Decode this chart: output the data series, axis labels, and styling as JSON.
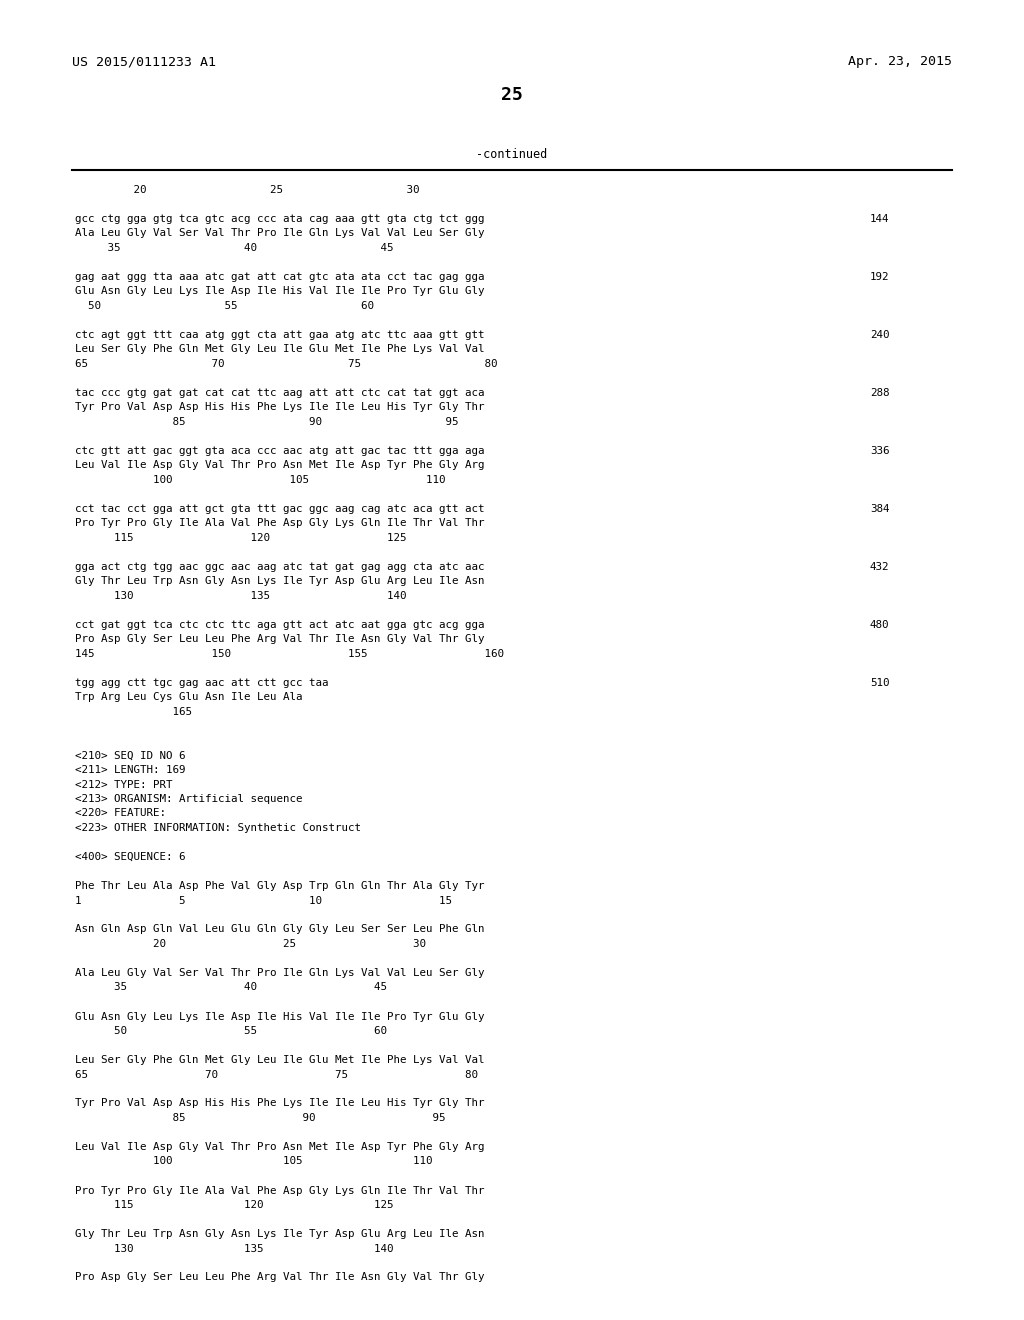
{
  "header_left": "US 2015/0111233 A1",
  "header_right": "Apr. 23, 2015",
  "page_number": "25",
  "continued_text": "-continued",
  "background_color": "#ffffff",
  "text_color": "#000000",
  "lines": [
    {
      "text": "         20                   25                   30",
      "right": "",
      "indent": 0
    },
    {
      "text": "",
      "right": "",
      "indent": 0
    },
    {
      "text": "gcc ctg gga gtg tca gtc acg ccc ata cag aaa gtt gta ctg tct ggg",
      "right": "144",
      "indent": 0
    },
    {
      "text": "Ala Leu Gly Val Ser Val Thr Pro Ile Gln Lys Val Val Leu Ser Gly",
      "right": "",
      "indent": 0
    },
    {
      "text": "     35                   40                   45",
      "right": "",
      "indent": 0
    },
    {
      "text": "",
      "right": "",
      "indent": 0
    },
    {
      "text": "gag aat ggg tta aaa atc gat att cat gtc ata ata cct tac gag gga",
      "right": "192",
      "indent": 0
    },
    {
      "text": "Glu Asn Gly Leu Lys Ile Asp Ile His Val Ile Ile Pro Tyr Glu Gly",
      "right": "",
      "indent": 0
    },
    {
      "text": "  50                   55                   60",
      "right": "",
      "indent": 0
    },
    {
      "text": "",
      "right": "",
      "indent": 0
    },
    {
      "text": "ctc agt ggt ttt caa atg ggt cta att gaa atg atc ttc aaa gtt gtt",
      "right": "240",
      "indent": 0
    },
    {
      "text": "Leu Ser Gly Phe Gln Met Gly Leu Ile Glu Met Ile Phe Lys Val Val",
      "right": "",
      "indent": 0
    },
    {
      "text": "65                   70                   75                   80",
      "right": "",
      "indent": 0
    },
    {
      "text": "",
      "right": "",
      "indent": 0
    },
    {
      "text": "tac ccc gtg gat gat cat cat ttc aag att att ctc cat tat ggt aca",
      "right": "288",
      "indent": 0
    },
    {
      "text": "Tyr Pro Val Asp Asp His His Phe Lys Ile Ile Leu His Tyr Gly Thr",
      "right": "",
      "indent": 0
    },
    {
      "text": "               85                   90                   95",
      "right": "",
      "indent": 0
    },
    {
      "text": "",
      "right": "",
      "indent": 0
    },
    {
      "text": "ctc gtt att gac ggt gta aca ccc aac atg att gac tac ttt gga aga",
      "right": "336",
      "indent": 0
    },
    {
      "text": "Leu Val Ile Asp Gly Val Thr Pro Asn Met Ile Asp Tyr Phe Gly Arg",
      "right": "",
      "indent": 0
    },
    {
      "text": "            100                  105                  110",
      "right": "",
      "indent": 0
    },
    {
      "text": "",
      "right": "",
      "indent": 0
    },
    {
      "text": "cct tac cct gga att gct gta ttt gac ggc aag cag atc aca gtt act",
      "right": "384",
      "indent": 0
    },
    {
      "text": "Pro Tyr Pro Gly Ile Ala Val Phe Asp Gly Lys Gln Ile Thr Val Thr",
      "right": "",
      "indent": 0
    },
    {
      "text": "      115                  120                  125",
      "right": "",
      "indent": 0
    },
    {
      "text": "",
      "right": "",
      "indent": 0
    },
    {
      "text": "gga act ctg tgg aac ggc aac aag atc tat gat gag agg cta atc aac",
      "right": "432",
      "indent": 0
    },
    {
      "text": "Gly Thr Leu Trp Asn Gly Asn Lys Ile Tyr Asp Glu Arg Leu Ile Asn",
      "right": "",
      "indent": 0
    },
    {
      "text": "      130                  135                  140",
      "right": "",
      "indent": 0
    },
    {
      "text": "",
      "right": "",
      "indent": 0
    },
    {
      "text": "cct gat ggt tca ctc ctc ttc aga gtt act atc aat gga gtc acg gga",
      "right": "480",
      "indent": 0
    },
    {
      "text": "Pro Asp Gly Ser Leu Leu Phe Arg Val Thr Ile Asn Gly Val Thr Gly",
      "right": "",
      "indent": 0
    },
    {
      "text": "145                  150                  155                  160",
      "right": "",
      "indent": 0
    },
    {
      "text": "",
      "right": "",
      "indent": 0
    },
    {
      "text": "tgg agg ctt tgc gag aac att ctt gcc taa",
      "right": "510",
      "indent": 0
    },
    {
      "text": "Trp Arg Leu Cys Glu Asn Ile Leu Ala",
      "right": "",
      "indent": 0
    },
    {
      "text": "               165",
      "right": "",
      "indent": 0
    },
    {
      "text": "",
      "right": "",
      "indent": 0
    },
    {
      "text": "",
      "right": "",
      "indent": 0
    },
    {
      "text": "<210> SEQ ID NO 6",
      "right": "",
      "indent": 0
    },
    {
      "text": "<211> LENGTH: 169",
      "right": "",
      "indent": 0
    },
    {
      "text": "<212> TYPE: PRT",
      "right": "",
      "indent": 0
    },
    {
      "text": "<213> ORGANISM: Artificial sequence",
      "right": "",
      "indent": 0
    },
    {
      "text": "<220> FEATURE:",
      "right": "",
      "indent": 0
    },
    {
      "text": "<223> OTHER INFORMATION: Synthetic Construct",
      "right": "",
      "indent": 0
    },
    {
      "text": "",
      "right": "",
      "indent": 0
    },
    {
      "text": "<400> SEQUENCE: 6",
      "right": "",
      "indent": 0
    },
    {
      "text": "",
      "right": "",
      "indent": 0
    },
    {
      "text": "Phe Thr Leu Ala Asp Phe Val Gly Asp Trp Gln Gln Thr Ala Gly Tyr",
      "right": "",
      "indent": 0
    },
    {
      "text": "1               5                   10                  15",
      "right": "",
      "indent": 0
    },
    {
      "text": "",
      "right": "",
      "indent": 0
    },
    {
      "text": "Asn Gln Asp Gln Val Leu Glu Gln Gly Gly Leu Ser Ser Leu Phe Gln",
      "right": "",
      "indent": 0
    },
    {
      "text": "            20                  25                  30",
      "right": "",
      "indent": 0
    },
    {
      "text": "",
      "right": "",
      "indent": 0
    },
    {
      "text": "Ala Leu Gly Val Ser Val Thr Pro Ile Gln Lys Val Val Leu Ser Gly",
      "right": "",
      "indent": 0
    },
    {
      "text": "      35                  40                  45",
      "right": "",
      "indent": 0
    },
    {
      "text": "",
      "right": "",
      "indent": 0
    },
    {
      "text": "Glu Asn Gly Leu Lys Ile Asp Ile His Val Ile Ile Pro Tyr Glu Gly",
      "right": "",
      "indent": 0
    },
    {
      "text": "      50                  55                  60",
      "right": "",
      "indent": 0
    },
    {
      "text": "",
      "right": "",
      "indent": 0
    },
    {
      "text": "Leu Ser Gly Phe Gln Met Gly Leu Ile Glu Met Ile Phe Lys Val Val",
      "right": "",
      "indent": 0
    },
    {
      "text": "65                  70                  75                  80",
      "right": "",
      "indent": 0
    },
    {
      "text": "",
      "right": "",
      "indent": 0
    },
    {
      "text": "Tyr Pro Val Asp Asp His His Phe Lys Ile Ile Leu His Tyr Gly Thr",
      "right": "",
      "indent": 0
    },
    {
      "text": "               85                  90                  95",
      "right": "",
      "indent": 0
    },
    {
      "text": "",
      "right": "",
      "indent": 0
    },
    {
      "text": "Leu Val Ile Asp Gly Val Thr Pro Asn Met Ile Asp Tyr Phe Gly Arg",
      "right": "",
      "indent": 0
    },
    {
      "text": "            100                 105                 110",
      "right": "",
      "indent": 0
    },
    {
      "text": "",
      "right": "",
      "indent": 0
    },
    {
      "text": "Pro Tyr Pro Gly Ile Ala Val Phe Asp Gly Lys Gln Ile Thr Val Thr",
      "right": "",
      "indent": 0
    },
    {
      "text": "      115                 120                 125",
      "right": "",
      "indent": 0
    },
    {
      "text": "",
      "right": "",
      "indent": 0
    },
    {
      "text": "Gly Thr Leu Trp Asn Gly Asn Lys Ile Tyr Asp Glu Arg Leu Ile Asn",
      "right": "",
      "indent": 0
    },
    {
      "text": "      130                 135                 140",
      "right": "",
      "indent": 0
    },
    {
      "text": "",
      "right": "",
      "indent": 0
    },
    {
      "text": "Pro Asp Gly Ser Leu Leu Phe Arg Val Thr Ile Asn Gly Val Thr Gly",
      "right": "",
      "indent": 0
    }
  ]
}
